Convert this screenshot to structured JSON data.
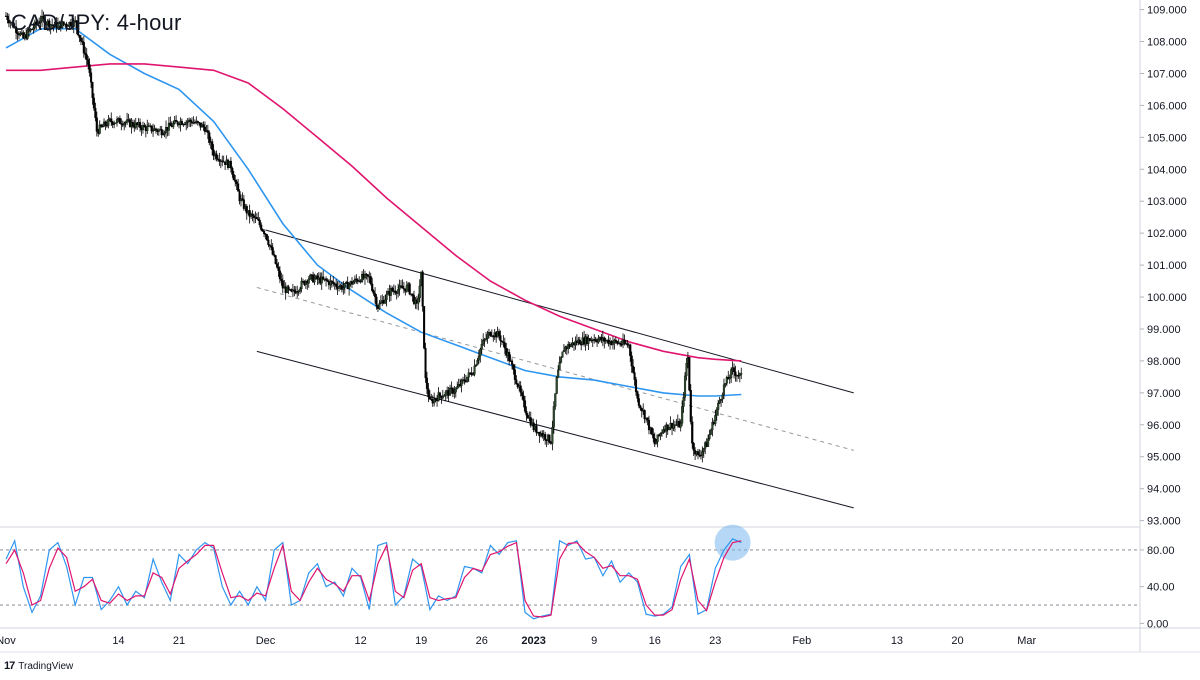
{
  "chart_title": "CAD/JPY: 4-hour",
  "brand": {
    "logo": "17",
    "name": "TradingView"
  },
  "colors": {
    "up": "#26a69a",
    "candle_body": "#2d4a2d",
    "down": "#000000",
    "ma_fast": "#2e96f0",
    "ma_slow": "#e0156f",
    "stoch_k": "#2e96f0",
    "stoch_d": "#e0156f",
    "highlight": "#7ab8ef"
  },
  "chart_data": [
    {
      "type": "candlestick",
      "title": "CAD/JPY: 4-hour",
      "ylim": [
        92.8,
        109.3
      ],
      "y_ticks": [
        "109.000",
        "108.000",
        "107.000",
        "106.000",
        "105.000",
        "104.000",
        "103.000",
        "102.000",
        "101.000",
        "100.000",
        "99.000",
        "98.000",
        "97.000",
        "96.000",
        "95.000",
        "94.000",
        "93.000"
      ],
      "x_ticks": [
        "Nov",
        "14",
        "21",
        "Dec",
        "12",
        "19",
        "26",
        "2023",
        "9",
        "16",
        "23",
        "Feb",
        "13",
        "20",
        "Mar"
      ],
      "x_tick_days": [
        0,
        13,
        20,
        30,
        41,
        48,
        55,
        61,
        68,
        75,
        82,
        92,
        103,
        110,
        118
      ],
      "price_anchors": [
        [
          0,
          108.8
        ],
        [
          2,
          108.1
        ],
        [
          4,
          108.7
        ],
        [
          5.5,
          108.5
        ],
        [
          8,
          108.6
        ],
        [
          9.5,
          107.3
        ],
        [
          10.5,
          105.2
        ],
        [
          12,
          105.5
        ],
        [
          13.5,
          105.5
        ],
        [
          16,
          105.3
        ],
        [
          18,
          105.2
        ],
        [
          20,
          105.5
        ],
        [
          21.5,
          105.5
        ],
        [
          23,
          105.3
        ],
        [
          24,
          104.5
        ],
        [
          26,
          104.1
        ],
        [
          27,
          103.1
        ],
        [
          28,
          102.6
        ],
        [
          29,
          102.4
        ],
        [
          30,
          102.0
        ],
        [
          31,
          101.2
        ],
        [
          32,
          100.3
        ],
        [
          33,
          100.1
        ],
        [
          35,
          100.6
        ],
        [
          37,
          100.5
        ],
        [
          39,
          100.3
        ],
        [
          41,
          100.6
        ],
        [
          42,
          100.6
        ],
        [
          43,
          99.7
        ],
        [
          44.5,
          100.2
        ],
        [
          46.5,
          100.3
        ],
        [
          47.5,
          99.7
        ],
        [
          48,
          100.7
        ],
        [
          48.5,
          97.4
        ],
        [
          49,
          96.7
        ],
        [
          50,
          96.9
        ],
        [
          52,
          97.1
        ],
        [
          54,
          97.7
        ],
        [
          55,
          98.5
        ],
        [
          56,
          98.9
        ],
        [
          57,
          98.8
        ],
        [
          58,
          98.2
        ],
        [
          59,
          97.4
        ],
        [
          60,
          96.5
        ],
        [
          61,
          95.9
        ],
        [
          62,
          95.7
        ],
        [
          63,
          95.5
        ],
        [
          63.7,
          97.5
        ],
        [
          64.5,
          98.4
        ],
        [
          66,
          98.6
        ],
        [
          68,
          98.7
        ],
        [
          70,
          98.6
        ],
        [
          72,
          98.5
        ],
        [
          73,
          96.8
        ],
        [
          74,
          96.2
        ],
        [
          75,
          95.4
        ],
        [
          76,
          95.9
        ],
        [
          77,
          96.0
        ],
        [
          78,
          96.0
        ],
        [
          78.8,
          98.3
        ],
        [
          79.3,
          95.4
        ],
        [
          80,
          95.0
        ],
        [
          81,
          95.4
        ],
        [
          82,
          96.3
        ],
        [
          83,
          97.2
        ],
        [
          84,
          97.7
        ],
        [
          85,
          97.5
        ]
      ],
      "series": [
        {
          "name": "",
          "kind": "moving_average",
          "points": [
            [
              0,
              107.8
            ],
            [
              4,
              108.4
            ],
            [
              8,
              108.4
            ],
            [
              12,
              107.6
            ],
            [
              16,
              107.0
            ],
            [
              20,
              106.5
            ],
            [
              24,
              105.5
            ],
            [
              28,
              104.0
            ],
            [
              32,
              102.3
            ],
            [
              36,
              101.0
            ],
            [
              40,
              100.2
            ],
            [
              44,
              99.5
            ],
            [
              48,
              98.9
            ],
            [
              52,
              98.5
            ],
            [
              56,
              98.1
            ],
            [
              60,
              97.7
            ],
            [
              64,
              97.5
            ],
            [
              68,
              97.4
            ],
            [
              72,
              97.2
            ],
            [
              76,
              97.0
            ],
            [
              80,
              96.9
            ],
            [
              82,
              96.9
            ],
            [
              85,
              96.95
            ]
          ]
        },
        {
          "name": "",
          "kind": "moving_average",
          "points": [
            [
              0,
              107.1
            ],
            [
              4,
              107.1
            ],
            [
              8,
              107.2
            ],
            [
              12,
              107.3
            ],
            [
              16,
              107.3
            ],
            [
              20,
              107.2
            ],
            [
              24,
              107.1
            ],
            [
              28,
              106.7
            ],
            [
              32,
              105.9
            ],
            [
              36,
              105.0
            ],
            [
              40,
              104.1
            ],
            [
              44,
              103.1
            ],
            [
              48,
              102.2
            ],
            [
              52,
              101.3
            ],
            [
              56,
              100.5
            ],
            [
              60,
              99.9
            ],
            [
              64,
              99.4
            ],
            [
              68,
              99.0
            ],
            [
              72,
              98.6
            ],
            [
              76,
              98.3
            ],
            [
              80,
              98.1
            ],
            [
              82,
              98.05
            ],
            [
              85,
              98.0
            ]
          ]
        }
      ],
      "channel": {
        "upper": [
          [
            30,
            102.1
          ],
          [
            98,
            97.0
          ]
        ],
        "middle": [
          [
            29,
            100.3
          ],
          [
            98,
            95.2
          ]
        ],
        "lower": [
          [
            29,
            98.3
          ],
          [
            98,
            93.4
          ]
        ]
      }
    },
    {
      "type": "line",
      "title": "",
      "ylim": [
        -5,
        105
      ],
      "y_ticks": [
        "80.00",
        "40.00",
        "0.00"
      ],
      "levels": [
        80,
        20
      ],
      "highlight_day": 84,
      "series": [
        {
          "name": "",
          "kind": "stoch_k",
          "points": [
            [
              0,
              70
            ],
            [
              1,
              90
            ],
            [
              2,
              40
            ],
            [
              3,
              12
            ],
            [
              4,
              30
            ],
            [
              5,
              80
            ],
            [
              6,
              88
            ],
            [
              7,
              62
            ],
            [
              8,
              20
            ],
            [
              9,
              50
            ],
            [
              10,
              50
            ],
            [
              11,
              15
            ],
            [
              12,
              25
            ],
            [
              13,
              40
            ],
            [
              14,
              20
            ],
            [
              15,
              35
            ],
            [
              16,
              28
            ],
            [
              17,
              70
            ],
            [
              18,
              45
            ],
            [
              19,
              25
            ],
            [
              20,
              75
            ],
            [
              21,
              65
            ],
            [
              22,
              80
            ],
            [
              23,
              88
            ],
            [
              24,
              82
            ],
            [
              25,
              40
            ],
            [
              26,
              20
            ],
            [
              27,
              35
            ],
            [
              28,
              20
            ],
            [
              29,
              40
            ],
            [
              30,
              25
            ],
            [
              31,
              80
            ],
            [
              32,
              88
            ],
            [
              33,
              20
            ],
            [
              34,
              25
            ],
            [
              35,
              55
            ],
            [
              36,
              65
            ],
            [
              37,
              40
            ],
            [
              38,
              45
            ],
            [
              39,
              30
            ],
            [
              40,
              60
            ],
            [
              41,
              50
            ],
            [
              42,
              15
            ],
            [
              43,
              85
            ],
            [
              44,
              88
            ],
            [
              45,
              20
            ],
            [
              46,
              30
            ],
            [
              47,
              70
            ],
            [
              48,
              62
            ],
            [
              49,
              15
            ],
            [
              50,
              30
            ],
            [
              51,
              25
            ],
            [
              52,
              30
            ],
            [
              53,
              62
            ],
            [
              54,
              60
            ],
            [
              55,
              55
            ],
            [
              56,
              85
            ],
            [
              57,
              75
            ],
            [
              58,
              88
            ],
            [
              59,
              90
            ],
            [
              60,
              12
            ],
            [
              61,
              5
            ],
            [
              62,
              8
            ],
            [
              63,
              10
            ],
            [
              64,
              90
            ],
            [
              65,
              85
            ],
            [
              66,
              90
            ],
            [
              67,
              70
            ],
            [
              68,
              72
            ],
            [
              69,
              52
            ],
            [
              70,
              68
            ],
            [
              71,
              45
            ],
            [
              72,
              55
            ],
            [
              73,
              45
            ],
            [
              74,
              10
            ],
            [
              75,
              8
            ],
            [
              76,
              10
            ],
            [
              77,
              18
            ],
            [
              78,
              62
            ],
            [
              79,
              75
            ],
            [
              80,
              10
            ],
            [
              81,
              15
            ],
            [
              82,
              60
            ],
            [
              83,
              80
            ],
            [
              84,
              92
            ],
            [
              85,
              88
            ]
          ]
        },
        {
          "name": "",
          "kind": "stoch_d",
          "points": [
            [
              0,
              65
            ],
            [
              1,
              80
            ],
            [
              2,
              55
            ],
            [
              3,
              20
            ],
            [
              4,
              25
            ],
            [
              5,
              60
            ],
            [
              6,
              82
            ],
            [
              7,
              72
            ],
            [
              8,
              35
            ],
            [
              9,
              40
            ],
            [
              10,
              48
            ],
            [
              11,
              25
            ],
            [
              12,
              22
            ],
            [
              13,
              32
            ],
            [
              14,
              25
            ],
            [
              15,
              30
            ],
            [
              16,
              30
            ],
            [
              17,
              55
            ],
            [
              18,
              50
            ],
            [
              19,
              32
            ],
            [
              20,
              60
            ],
            [
              21,
              68
            ],
            [
              22,
              75
            ],
            [
              23,
              85
            ],
            [
              24,
              85
            ],
            [
              25,
              55
            ],
            [
              26,
              28
            ],
            [
              27,
              30
            ],
            [
              28,
              25
            ],
            [
              29,
              33
            ],
            [
              30,
              30
            ],
            [
              31,
              60
            ],
            [
              32,
              85
            ],
            [
              33,
              35
            ],
            [
              34,
              25
            ],
            [
              35,
              45
            ],
            [
              36,
              60
            ],
            [
              37,
              48
            ],
            [
              38,
              43
            ],
            [
              39,
              35
            ],
            [
              40,
              52
            ],
            [
              41,
              52
            ],
            [
              42,
              25
            ],
            [
              43,
              65
            ],
            [
              44,
              85
            ],
            [
              45,
              35
            ],
            [
              46,
              28
            ],
            [
              47,
              58
            ],
            [
              48,
              65
            ],
            [
              49,
              28
            ],
            [
              50,
              25
            ],
            [
              51,
              27
            ],
            [
              52,
              28
            ],
            [
              53,
              50
            ],
            [
              54,
              60
            ],
            [
              55,
              57
            ],
            [
              56,
              75
            ],
            [
              57,
              78
            ],
            [
              58,
              84
            ],
            [
              59,
              88
            ],
            [
              60,
              25
            ],
            [
              61,
              8
            ],
            [
              62,
              7
            ],
            [
              63,
              9
            ],
            [
              64,
              70
            ],
            [
              65,
              87
            ],
            [
              66,
              88
            ],
            [
              67,
              78
            ],
            [
              68,
              72
            ],
            [
              69,
              60
            ],
            [
              70,
              63
            ],
            [
              71,
              52
            ],
            [
              72,
              52
            ],
            [
              73,
              48
            ],
            [
              74,
              20
            ],
            [
              75,
              9
            ],
            [
              76,
              9
            ],
            [
              77,
              15
            ],
            [
              78,
              48
            ],
            [
              79,
              70
            ],
            [
              80,
              25
            ],
            [
              81,
              14
            ],
            [
              82,
              45
            ],
            [
              83,
              72
            ],
            [
              84,
              88
            ],
            [
              85,
              90
            ]
          ]
        }
      ]
    }
  ]
}
